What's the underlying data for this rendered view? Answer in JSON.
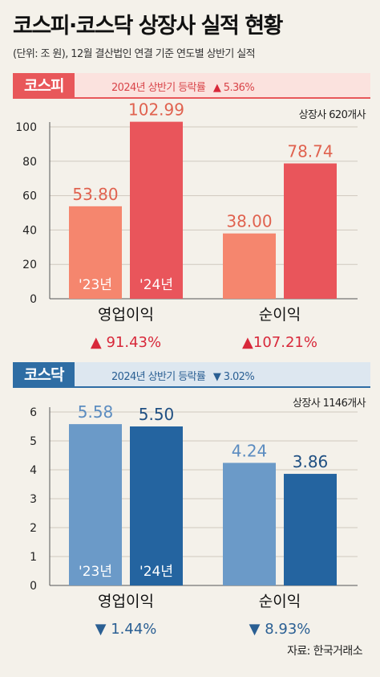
{
  "title": "코스피·코스닥 상장사 실적 현황",
  "subtitle": "(단위: 조 원), 12월 결산법인 연결 기준 연도별 상반기 실적",
  "source": "자료: 한국거래소",
  "kospi": {
    "tag": "코스피",
    "rate_label": "2024년 상반기 등락률",
    "rate_arrow": "▲",
    "rate_value": "5.36%",
    "count": "상장사 620개사"
  },
  "kosdaq": {
    "tag": "코스닥",
    "rate_label": "2024년 상반기 등락률",
    "rate_arrow": "▼",
    "rate_value": "3.02%",
    "count": "상장사 1146개사"
  },
  "colors": {
    "kospi_23": "#f5866e",
    "kospi_24": "#e9555b",
    "kosdaq_23": "#6b9ac8",
    "kosdaq_24": "#2464a0",
    "up": "#d8283a",
    "down": "#2a5f93",
    "kospi_label": "#e0624f",
    "kosdaq_label_23": "#5b8cc0",
    "kosdaq_label_24": "#1f4f82"
  },
  "chart_data": [
    {
      "type": "bar",
      "id": "kospi",
      "categories": [
        "영업이익",
        "순이익"
      ],
      "series": [
        {
          "name": "'23년",
          "values": [
            53.8,
            38.0
          ]
        },
        {
          "name": "'24년",
          "values": [
            102.99,
            78.74
          ]
        }
      ],
      "labels": [
        [
          "53.80",
          "102.99"
        ],
        [
          "38.00",
          "78.74"
        ]
      ],
      "changes": [
        {
          "arrow": "▲",
          "text": " 91.43%"
        },
        {
          "arrow": "▲",
          "text": "107.21%"
        }
      ],
      "ylim": [
        0,
        100
      ],
      "yticks": [
        0,
        20,
        40,
        60,
        80,
        100
      ]
    },
    {
      "type": "bar",
      "id": "kosdaq",
      "categories": [
        "영업이익",
        "순이익"
      ],
      "series": [
        {
          "name": "'23년",
          "values": [
            5.58,
            4.24
          ]
        },
        {
          "name": "'24년",
          "values": [
            5.5,
            3.86
          ]
        }
      ],
      "labels": [
        [
          "5.58",
          "5.50"
        ],
        [
          "4.24",
          "3.86"
        ]
      ],
      "changes": [
        {
          "arrow": "▼",
          "text": " 1.44%"
        },
        {
          "arrow": "▼",
          "text": " 8.93%"
        }
      ],
      "ylim": [
        0,
        6
      ],
      "yticks": [
        0,
        1,
        2,
        3,
        4,
        5,
        6
      ]
    }
  ]
}
